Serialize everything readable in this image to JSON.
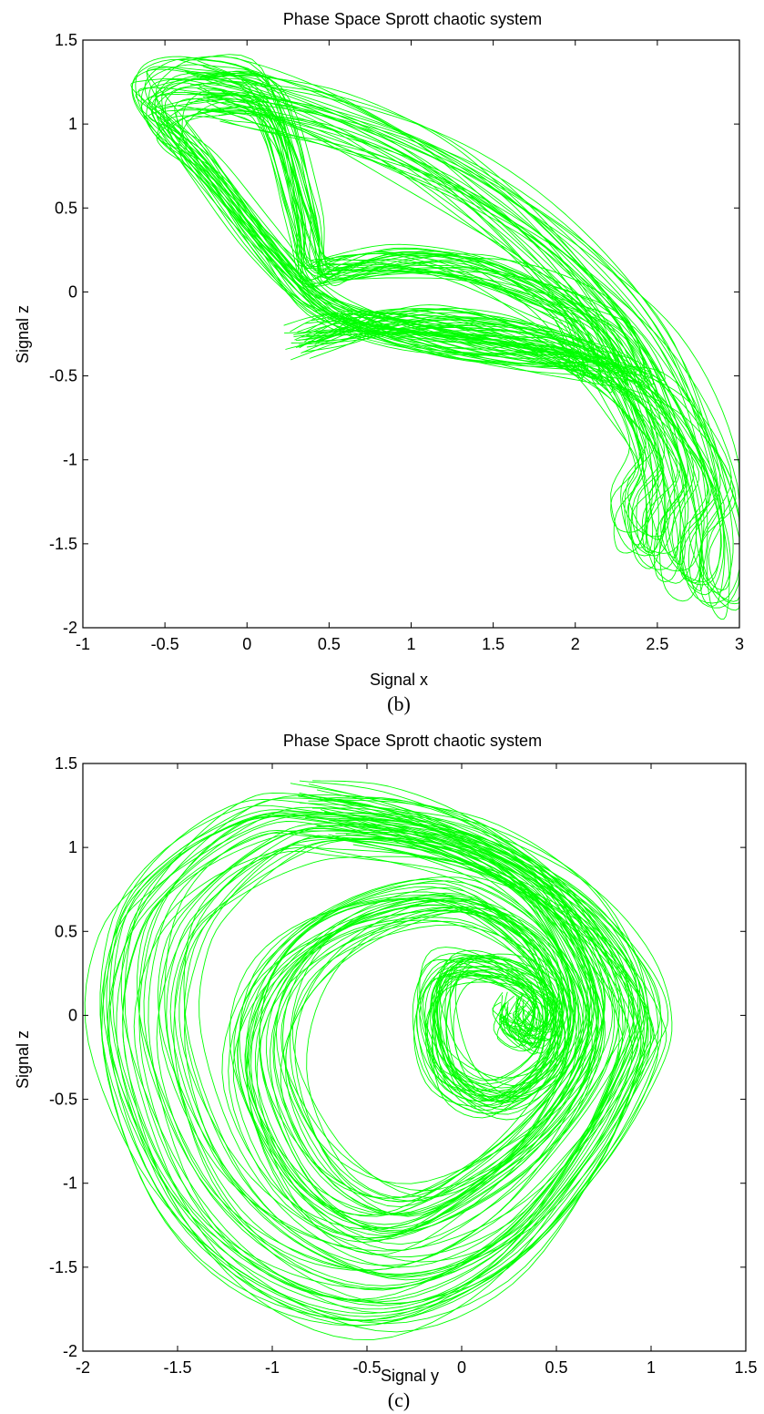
{
  "colors": {
    "trajectory": "#00ff00",
    "axes": "#000000",
    "background": "#ffffff"
  },
  "chart_data": [
    {
      "type": "line",
      "panel": "b",
      "title": "Phase Space Sprott chaotic system",
      "xlabel": "Signal x",
      "ylabel": "Signal z",
      "caption": "(b)",
      "xlim": [
        -1,
        3
      ],
      "ylim": [
        -2,
        1.5
      ],
      "xticks": [
        -1,
        -0.5,
        0,
        0.5,
        1,
        1.5,
        2,
        2.5,
        3
      ],
      "yticks": [
        -2,
        -1.5,
        -1,
        -0.5,
        0,
        0.5,
        1,
        1.5
      ],
      "xtick_labels": [
        "-1",
        "-0.5",
        "0",
        "0.5",
        "1",
        "1.5",
        "2",
        "2.5",
        "3"
      ],
      "ytick_labels": [
        "-2",
        "-1.5",
        "-1",
        "-0.5",
        "0",
        "0.5",
        "1",
        "1.5"
      ],
      "grid": false,
      "series": [
        {
          "color": "#00ff00",
          "x": [
            -0.35,
            -0.05,
            0.5,
            1.1,
            1.6,
            2.1,
            2.55,
            2.85,
            3.0,
            2.95,
            2.8,
            2.75,
            2.9,
            2.7,
            2.45,
            2.15,
            1.7,
            1.1,
            0.5,
            0.1,
            -0.3,
            -0.55,
            -0.65,
            -0.6,
            -0.35,
            0.1,
            0.35,
            0.42,
            0.6,
            1.0,
            1.5,
            2.0,
            2.3,
            2.45,
            2.3,
            1.9,
            1.35,
            0.9,
            0.6,
            0.3
          ],
          "y": [
            1.35,
            1.3,
            1.15,
            0.9,
            0.6,
            0.2,
            -0.3,
            -0.9,
            -1.5,
            -1.85,
            -1.8,
            -1.5,
            -1.2,
            -0.8,
            -0.55,
            -0.45,
            -0.4,
            -0.3,
            -0.1,
            0.3,
            0.8,
            1.05,
            1.2,
            1.3,
            1.35,
            1.25,
            0.5,
            0.15,
            0.15,
            0.2,
            0.15,
            -0.05,
            -0.25,
            -0.55,
            -0.45,
            -0.3,
            -0.2,
            -0.2,
            -0.25,
            -0.33
          ]
        }
      ]
    },
    {
      "type": "line",
      "panel": "c",
      "title": "Phase Space Sprott chaotic system",
      "xlabel": "Signal y",
      "ylabel": "Signal z",
      "caption": "(c)",
      "xlim": [
        -2,
        1.5
      ],
      "ylim": [
        -2,
        1.5
      ],
      "xticks": [
        -2,
        -1.5,
        -1,
        -0.5,
        0,
        0.5,
        1,
        1.5
      ],
      "yticks": [
        -2,
        -1.5,
        -1,
        -0.5,
        0,
        0.5,
        1,
        1.5
      ],
      "xtick_labels": [
        "-2",
        "-1.5",
        "-1",
        "-0.5",
        "0",
        "0.5",
        "1",
        "1.5"
      ],
      "ytick_labels": [
        "-2",
        "-1.5",
        "-1",
        "-0.5",
        "0",
        "0.5",
        "1",
        "1.5"
      ],
      "grid": false,
      "series": [
        {
          "color": "#00ff00",
          "x": [
            -0.85,
            -0.4,
            0.1,
            0.6,
            0.9,
            1.02,
            0.98,
            0.7,
            0.2,
            -0.45,
            -1.1,
            -1.6,
            -1.9,
            -1.85,
            -1.6,
            -1.2,
            -0.85,
            -0.2,
            0.3,
            0.6,
            0.75,
            0.6,
            0.2,
            -0.4,
            -0.9,
            -1.2,
            -1.1,
            -0.7,
            -0.1,
            0.35,
            0.55,
            0.5,
            0.2,
            -0.1,
            -0.2,
            -0.1,
            0.2,
            0.45,
            0.4,
            0.25,
            0.28
          ],
          "y": [
            1.35,
            1.28,
            1.1,
            0.75,
            0.35,
            0.0,
            -0.3,
            -0.9,
            -1.55,
            -1.85,
            -1.65,
            -1.1,
            -0.2,
            0.5,
            0.9,
            1.2,
            1.25,
            1.15,
            0.9,
            0.5,
            0.0,
            -0.5,
            -1.0,
            -1.35,
            -1.1,
            -0.4,
            0.2,
            0.6,
            0.75,
            0.5,
            0.1,
            -0.3,
            -0.55,
            -0.4,
            0.0,
            0.3,
            0.3,
            0.1,
            -0.15,
            -0.05,
            0.08
          ]
        }
      ]
    }
  ]
}
